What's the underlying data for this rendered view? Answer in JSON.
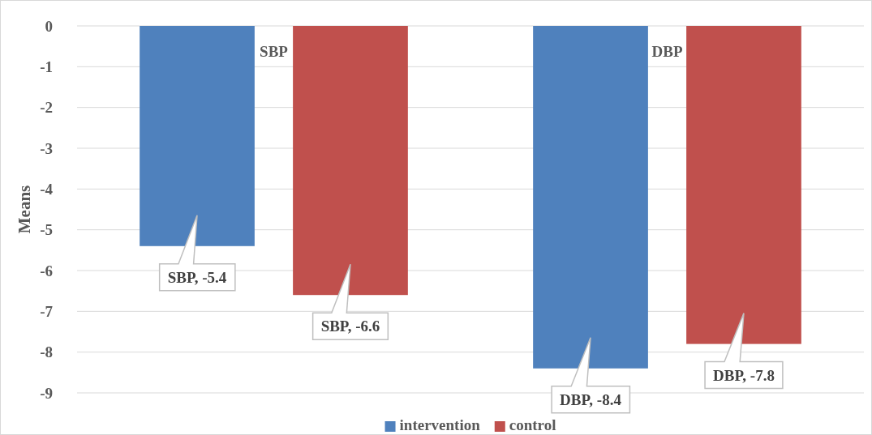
{
  "chart_data": {
    "type": "bar",
    "ylabel": "Means",
    "categories": [
      "SBP",
      "DBP"
    ],
    "series": [
      {
        "name": "intervention",
        "color": "#4f81bd",
        "values": [
          -5.4,
          -8.4
        ],
        "value_labels": [
          "SBP, -5.4",
          "DBP, -8.4"
        ]
      },
      {
        "name": "control",
        "color": "#c0504d",
        "values": [
          -6.6,
          -7.8
        ],
        "value_labels": [
          "SBP, -6.6",
          "DBP, -7.8"
        ]
      }
    ],
    "ylim": [
      -9,
      0
    ],
    "yticks": [
      0,
      -1,
      -2,
      -3,
      -4,
      -5,
      -6,
      -7,
      -8,
      -9
    ],
    "grid": "y",
    "legend": "bottom"
  }
}
